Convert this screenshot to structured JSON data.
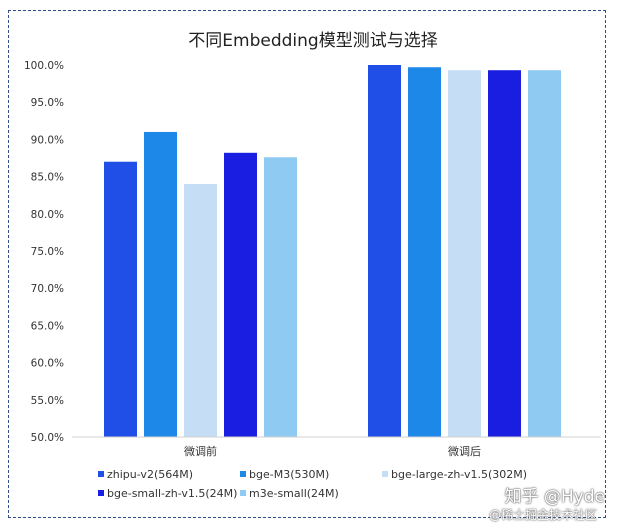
{
  "chart_data": {
    "type": "bar",
    "title": "不同Embedding模型测试与选择",
    "categories": [
      "微调前",
      "微调后"
    ],
    "ylim": [
      0.5,
      1.0
    ],
    "yticks": [
      "50.0%",
      "55.0%",
      "60.0%",
      "65.0%",
      "70.0%",
      "75.0%",
      "80.0%",
      "85.0%",
      "90.0%",
      "95.0%",
      "100.0%"
    ],
    "series": [
      {
        "name": "zhipu-v2(564M)",
        "color": "#1f4fe6",
        "values": [
          0.87,
          1.0
        ]
      },
      {
        "name": "bge-M3(530M)",
        "color": "#1e88e8",
        "values": [
          0.91,
          0.997
        ]
      },
      {
        "name": "bge-large-zh-v1.5(302M)",
        "color": "#c6ddf6",
        "values": [
          0.84,
          0.993
        ]
      },
      {
        "name": "bge-small-zh-v1.5(24M)",
        "color": "#1a1ee0",
        "values": [
          0.882,
          0.993
        ]
      },
      {
        "name": "m3e-small(24M)",
        "color": "#8fcaf3",
        "values": [
          0.876,
          0.993
        ]
      }
    ],
    "legend_position": "bottom",
    "grid": false
  },
  "watermark": {
    "brand": "知乎 @Hyde",
    "source": "@稀土掘金技术社区"
  }
}
